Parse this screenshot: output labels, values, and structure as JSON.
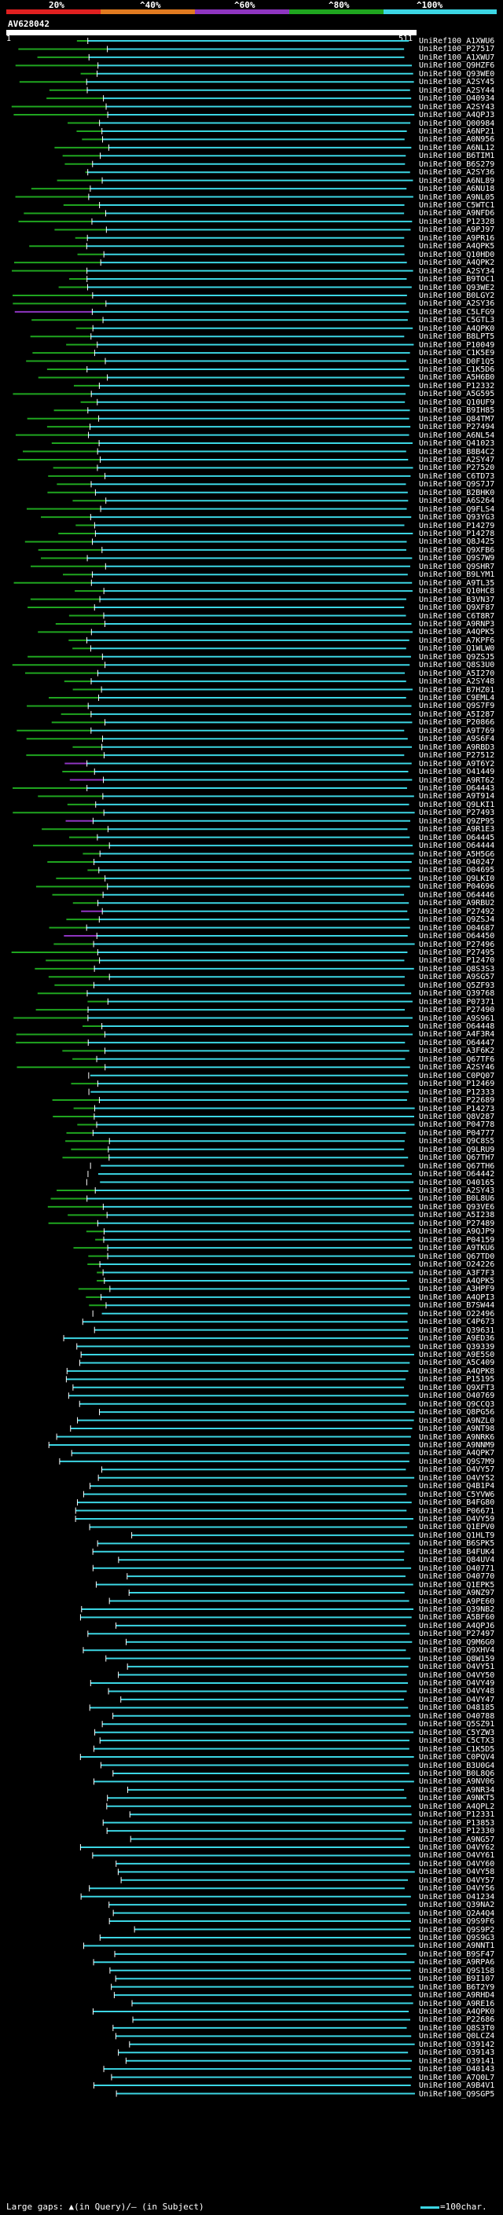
{
  "legend": {
    "labels": [
      "20%",
      "^40%",
      "^60%",
      "^80%",
      "^100%"
    ],
    "colors": [
      "#e02020",
      "#e07a20",
      "#8e35c0",
      "#1fa51f",
      "#3cd6e4"
    ]
  },
  "query": {
    "title": "AV628042",
    "start_tick": "1",
    "end_tick": "511"
  },
  "hits": [
    "UniRef100_A1XWU6",
    "UniRef100_P27517",
    "UniRef100_A1XWU7",
    "UniRef100_Q9HZF6",
    "UniRef100_Q93WE0",
    "UniRef100_A2SY45",
    "UniRef100_A2SY44",
    "UniRef100_O40934",
    "UniRef100_A2SY43",
    "UniRef100_A4QPJ3",
    "UniRef100_Q00984",
    "UniRef100_A6NP21",
    "UniRef100_A0N956",
    "UniRef100_A6NL12",
    "UniRef100_B6TIM1",
    "UniRef100_B6S279",
    "UniRef100_A2SY36",
    "UniRef100_A6NL89",
    "UniRef100_A6NU18",
    "UniRef100_A9NL05",
    "UniRef100_C5WTC1",
    "UniRef100_A9NFD6",
    "UniRef100_P12328",
    "UniRef100_A9PJ97",
    "UniRef100_A9PR16",
    "UniRef100_A4QPK5",
    "UniRef100_Q10HD0",
    "UniRef100_A4QPK2",
    "UniRef100_A2SY34",
    "UniRef100_B9TOC1",
    "UniRef100_Q93WE2",
    "UniRef100_B0LGY2",
    "UniRef100_A2SY36",
    "UniRef100_C5LFG9",
    "UniRef100_C5GTL3",
    "UniRef100_A4QPK0",
    "UniRef100_B8LPT5",
    "UniRef100_P10049",
    "UniRef100_C1K5E9",
    "UniRef100_D0F1Q5",
    "UniRef100_C1K5D6",
    "UniRef100_A5H6B0",
    "UniRef100_P12332",
    "UniRef100_A5G595",
    "UniRef100_Q10UF9",
    "UniRef100_B9IH85",
    "UniRef100_Q84TM7",
    "UniRef100_P27494",
    "UniRef100_A6NL54",
    "UniRef100_Q41023",
    "UniRef100_B8B4C2",
    "UniRef100_A2SY47",
    "UniRef100_P27520",
    "UniRef100_C6TD73",
    "UniRef100_Q9S7J7",
    "UniRef100_B2BHK0",
    "UniRef100_A6S264",
    "UniRef100_Q9FLS4",
    "UniRef100_Q93YG3",
    "UniRef100_P14279",
    "UniRef100_P14278",
    "UniRef100_Q8J425",
    "UniRef100_Q9XFB6",
    "UniRef100_Q9S7W9",
    "UniRef100_Q9SHR7",
    "UniRef100_B9LYM1",
    "UniRef100_A9TL35",
    "UniRef100_Q10HC8",
    "UniRef100_B3VN37",
    "UniRef100_Q9XF87",
    "UniRef100_C6T8R7",
    "UniRef100_A9RNP3",
    "UniRef100_A4QPK5",
    "UniRef100_A7KPF6",
    "UniRef100_Q1WLW0",
    "UniRef100_Q9ZSJ5",
    "UniRef100_Q8S3U0",
    "UniRef100_A5I270",
    "UniRef100_A2SY48",
    "UniRef100_B7HZ01",
    "UniRef100_C9EML4",
    "UniRef100_Q9S7F9",
    "UniRef100_A5I287",
    "UniRef100_P20866",
    "UniRef100_A9T769",
    "UniRef100_A9S6F4",
    "UniRef100_A9RBD3",
    "UniRef100_P27512",
    "UniRef100_A9T6Y2",
    "UniRef100_O41449",
    "UniRef100_A9RT62",
    "UniRef100_O64443",
    "UniRef100_A9T914",
    "UniRef100_Q9LKI1",
    "UniRef100_P27493",
    "UniRef100_Q9ZP95",
    "UniRef100_A9R1E3",
    "UniRef100_O64445",
    "UniRef100_O64444",
    "UniRef100_A5H5G6",
    "UniRef100_O40247",
    "UniRef100_O04695",
    "UniRef100_Q9LKI0",
    "UniRef100_P04696",
    "UniRef100_O64446",
    "UniRef100_A9RBU2",
    "UniRef100_P27492",
    "UniRef100_Q9ZSJ4",
    "UniRef100_O04687",
    "UniRef100_O64450",
    "UniRef100_P27496",
    "UniRef100_P27495",
    "UniRef100_P12470",
    "UniRef100_Q8S3S3",
    "UniRef100_A9SG57",
    "UniRef100_Q5ZF93",
    "UniRef100_Q39768",
    "UniRef100_P07371",
    "UniRef100_P27490",
    "UniRef100_A9S961",
    "UniRef100_O64448",
    "UniRef100_A4F3R4",
    "UniRef100_O64447",
    "UniRef100_A3F6K2",
    "UniRef100_Q67TF6",
    "UniRef100_A2SY46",
    "UniRef100_C0PQ07",
    "UniRef100_P12469",
    "UniRef100_P12333",
    "UniRef100_P22689",
    "UniRef100_P14273",
    "UniRef100_Q8V287",
    "UniRef100_P04778",
    "UniRef100_P04777",
    "UniRef100_Q9C8S5",
    "UniRef100_Q9LRU9",
    "UniRef100_Q67TH7",
    "UniRef100_Q67TH6",
    "UniRef100_O64442",
    "UniRef100_O40165",
    "UniRef100_A2SY43",
    "UniRef100_B0L8U6",
    "UniRef100_Q93VE6",
    "UniRef100_A5I238",
    "UniRef100_P27489",
    "UniRef100_A9QJP9",
    "UniRef100_P04159",
    "UniRef100_A9TKU6",
    "UniRef100_Q67TD0",
    "UniRef100_O24226",
    "UniRef100_A3F7F3",
    "UniRef100_A4QPK5",
    "UniRef100_A3HPF9",
    "UniRef100_A4QPI3",
    "UniRef100_B7SW44",
    "UniRef100_O22496",
    "UniRef100_C4P673",
    "UniRef100_Q39631",
    "UniRef100_A9ED36",
    "UniRef100_Q39339",
    "UniRef100_A9E5S0",
    "UniRef100_A5C409",
    "UniRef100_A4QPK8",
    "UniRef100_P15195",
    "UniRef100_Q9XFT3",
    "UniRef100_O40769",
    "UniRef100_Q9CCQ3",
    "UniRef100_Q8PG56",
    "UniRef100_A9NZL0",
    "UniRef100_A9NT98",
    "UniRef100_A9NRK6",
    "UniRef100_A9NNM9",
    "UniRef100_A4QPK7",
    "UniRef100_Q9S7M9",
    "UniRef100_O4VY57",
    "UniRef100_O4VY52",
    "UniRef100_Q4B1P4",
    "UniRef100_C5YVW6",
    "UniRef100_B4FG80",
    "UniRef100_P06671",
    "UniRef100_O4VY59",
    "UniRef100_Q1EPV0",
    "UniRef100_Q1HLT9",
    "UniRef100_B6SPK5",
    "UniRef100_B4FUK4",
    "UniRef100_Q84UV4",
    "UniRef100_O40771",
    "UniRef100_O40770",
    "UniRef100_Q1EPK5",
    "UniRef100_A9NZ97",
    "UniRef100_A9PE60",
    "UniRef100_Q39NB2",
    "UniRef100_A5BF60",
    "UniRef100_A4QPJ6",
    "UniRef100_P27497",
    "UniRef100_Q9M6G0",
    "UniRef100_Q9XHV4",
    "UniRef100_Q8W159",
    "UniRef100_O4VY51",
    "UniRef100_O4VY50",
    "UniRef100_O4VY49",
    "UniRef100_O4VY48",
    "UniRef100_O4VY47",
    "UniRef100_O48185",
    "UniRef100_O40788",
    "UniRef100_Q5SZ91",
    "UniRef100_C5YZW3",
    "UniRef100_C5CTX3",
    "UniRef100_C1K5D5",
    "UniRef100_C0PQV4",
    "UniRef100_B3U0G4",
    "UniRef100_B0L8Q6",
    "UniRef100_A9NV06",
    "UniRef100_A9NR34",
    "UniRef100_A9NKT5",
    "UniRef100_A4QPL2",
    "UniRef100_P12331",
    "UniRef100_P13853",
    "UniRef100_P12330",
    "UniRef100_A9NG57",
    "UniRef100_O4VY62",
    "UniRef100_O4VY61",
    "UniRef100_O4VY60",
    "UniRef100_O4VY58",
    "UniRef100_O4VY57",
    "UniRef100_O4VY56",
    "UniRef100_O41234",
    "UniRef100_Q39NA2",
    "UniRef100_Q2A4Q4",
    "UniRef100_Q9S9F6",
    "UniRef100_Q9S9P2",
    "UniRef100_Q9S9G3",
    "UniRef100_A9NNT1",
    "UniRef100_B9SF47",
    "UniRef100_A9RPA6",
    "UniRef100_Q9S1S8",
    "UniRef100_B9I107",
    "UniRef100_B6T2Y9",
    "UniRef100_A9RHD4",
    "UniRef100_A9RE16",
    "UniRef100_A4QPK0",
    "UniRef100_P22686",
    "UniRef100_Q8S3T0",
    "UniRef100_Q0LCZ4",
    "UniRef100_O39142",
    "UniRef100_O39143",
    "UniRef100_O39141",
    "UniRef100_O40143",
    "UniRef100_A7Q0L7",
    "UniRef100_A9B4V1",
    "UniRef100_Q9SGP5"
  ],
  "footer": {
    "gaps_text": "Large gaps: ▲(in Query)/— (in Subject)",
    "scale_text": "=100char."
  }
}
